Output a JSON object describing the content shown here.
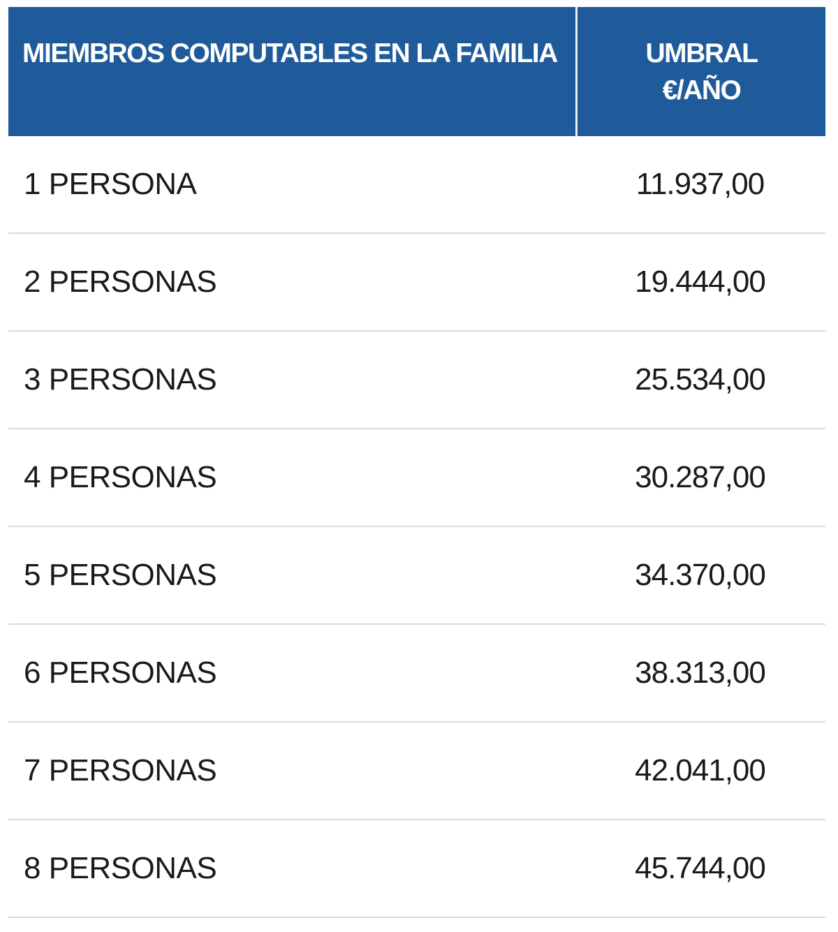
{
  "table": {
    "header": {
      "col1": "MIEMBROS COMPUTABLES EN LA FAMILIA",
      "col2_line1": "UMBRAL",
      "col2_line2": "€/AÑO"
    },
    "rows": [
      {
        "label": "1 PERSONA",
        "value": "11.937,00"
      },
      {
        "label": "2 PERSONAS",
        "value": "19.444,00"
      },
      {
        "label": "3 PERSONAS",
        "value": "25.534,00"
      },
      {
        "label": "4 PERSONAS",
        "value": "30.287,00"
      },
      {
        "label": "5 PERSONAS",
        "value": "34.370,00"
      },
      {
        "label": "6 PERSONAS",
        "value": "38.313,00"
      },
      {
        "label": "7 PERSONAS",
        "value": "42.041,00"
      },
      {
        "label": "8 PERSONAS",
        "value": "45.744,00"
      }
    ]
  },
  "colors": {
    "header_background": "#1f5b9a",
    "header_text": "#ffffff",
    "row_divider": "#d9d9d9",
    "body_text": "#1a1a1a"
  }
}
